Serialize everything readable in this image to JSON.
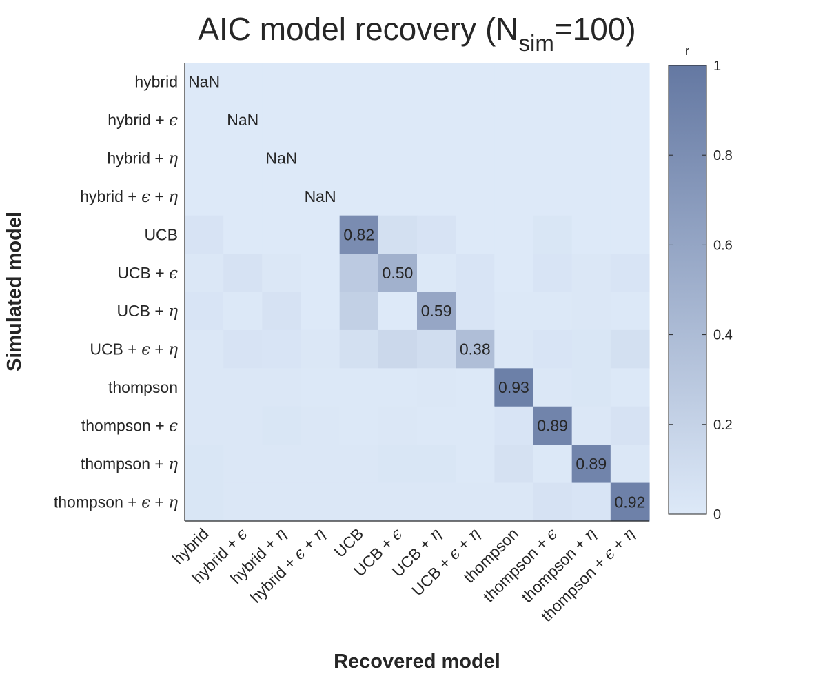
{
  "chart_data": {
    "type": "heatmap",
    "title": {
      "main": "AIC model recovery (N",
      "sub": "sim",
      "tail": "=100)"
    },
    "xlabel": "Recovered model",
    "ylabel": "Simulated model",
    "colorbar": {
      "label": "r",
      "range": [
        0,
        1
      ],
      "ticks": [
        "0",
        "0.2",
        "0.4",
        "0.6",
        "0.8",
        "1"
      ]
    },
    "colors": {
      "low": "#dde9f8",
      "high": "#6478a2"
    },
    "models": [
      {
        "base": "hybrid",
        "greek": []
      },
      {
        "base": "hybrid",
        "greek": [
          "ϵ"
        ]
      },
      {
        "base": "hybrid",
        "greek": [
          "η"
        ]
      },
      {
        "base": "hybrid",
        "greek": [
          "ϵ",
          "η"
        ]
      },
      {
        "base": "UCB",
        "greek": []
      },
      {
        "base": "UCB",
        "greek": [
          "ϵ"
        ]
      },
      {
        "base": "UCB",
        "greek": [
          "η"
        ]
      },
      {
        "base": "UCB",
        "greek": [
          "ϵ",
          "η"
        ]
      },
      {
        "base": "thompson",
        "greek": []
      },
      {
        "base": "thompson",
        "greek": [
          "ϵ"
        ]
      },
      {
        "base": "thompson",
        "greek": [
          "η"
        ]
      },
      {
        "base": "thompson",
        "greek": [
          "ϵ",
          "η"
        ]
      }
    ],
    "values": [
      [
        null,
        0,
        0,
        0,
        0,
        0,
        0,
        0,
        0,
        0,
        0,
        0
      ],
      [
        0,
        null,
        0,
        0,
        0,
        0,
        0,
        0,
        0,
        0,
        0,
        0
      ],
      [
        0,
        0,
        null,
        0,
        0,
        0,
        0,
        0,
        0,
        0,
        0,
        0
      ],
      [
        0,
        0,
        0,
        null,
        0,
        0,
        0,
        0,
        0,
        0,
        0,
        0
      ],
      [
        0.05,
        0,
        0,
        0,
        0.82,
        0.08,
        0.05,
        0,
        0,
        0.03,
        0,
        0
      ],
      [
        0.02,
        0.06,
        0.02,
        0,
        0.27,
        0.5,
        0.01,
        0.04,
        0,
        0.04,
        0.02,
        0.04
      ],
      [
        0.04,
        0.01,
        0.06,
        0,
        0.22,
        0,
        0.59,
        0.04,
        0.01,
        0.01,
        0.02,
        0.01
      ],
      [
        0.02,
        0.05,
        0.04,
        0.02,
        0.08,
        0.15,
        0.11,
        0.38,
        0.02,
        0.04,
        0.03,
        0.08
      ],
      [
        0.02,
        0.02,
        0.02,
        0.01,
        0.01,
        0.01,
        0.02,
        0.01,
        0.93,
        0.02,
        0.03,
        0.01
      ],
      [
        0.02,
        0.02,
        0.03,
        0.02,
        0.01,
        0.02,
        0.01,
        0.01,
        0.04,
        0.89,
        0.02,
        0.06
      ],
      [
        0.03,
        0.02,
        0.02,
        0.02,
        0.02,
        0.03,
        0.03,
        0.01,
        0.07,
        0.01,
        0.89,
        0.02
      ],
      [
        0.03,
        0.02,
        0.02,
        0.02,
        0.02,
        0.02,
        0.02,
        0.02,
        0.02,
        0.06,
        0.04,
        0.92
      ]
    ],
    "labels": [
      [
        "NaN",
        "",
        "",
        "",
        "",
        "",
        "",
        "",
        "",
        "",
        "",
        ""
      ],
      [
        "",
        "NaN",
        "",
        "",
        "",
        "",
        "",
        "",
        "",
        "",
        "",
        ""
      ],
      [
        "",
        "",
        "NaN",
        "",
        "",
        "",
        "",
        "",
        "",
        "",
        "",
        ""
      ],
      [
        "",
        "",
        "",
        "NaN",
        "",
        "",
        "",
        "",
        "",
        "",
        "",
        ""
      ],
      [
        "",
        "",
        "",
        "",
        "0.82",
        "",
        "",
        "",
        "",
        "",
        "",
        ""
      ],
      [
        "",
        "",
        "",
        "",
        "",
        "0.50",
        "",
        "",
        "",
        "",
        "",
        ""
      ],
      [
        "",
        "",
        "",
        "",
        "",
        "",
        "0.59",
        "",
        "",
        "",
        "",
        ""
      ],
      [
        "",
        "",
        "",
        "",
        "",
        "",
        "",
        "0.38",
        "",
        "",
        "",
        ""
      ],
      [
        "",
        "",
        "",
        "",
        "",
        "",
        "",
        "",
        "0.93",
        "",
        "",
        ""
      ],
      [
        "",
        "",
        "",
        "",
        "",
        "",
        "",
        "",
        "",
        "0.89",
        "",
        ""
      ],
      [
        "",
        "",
        "",
        "",
        "",
        "",
        "",
        "",
        "",
        "",
        "0.89",
        ""
      ],
      [
        "",
        "",
        "",
        "",
        "",
        "",
        "",
        "",
        "",
        "",
        "",
        "0.92"
      ]
    ]
  }
}
